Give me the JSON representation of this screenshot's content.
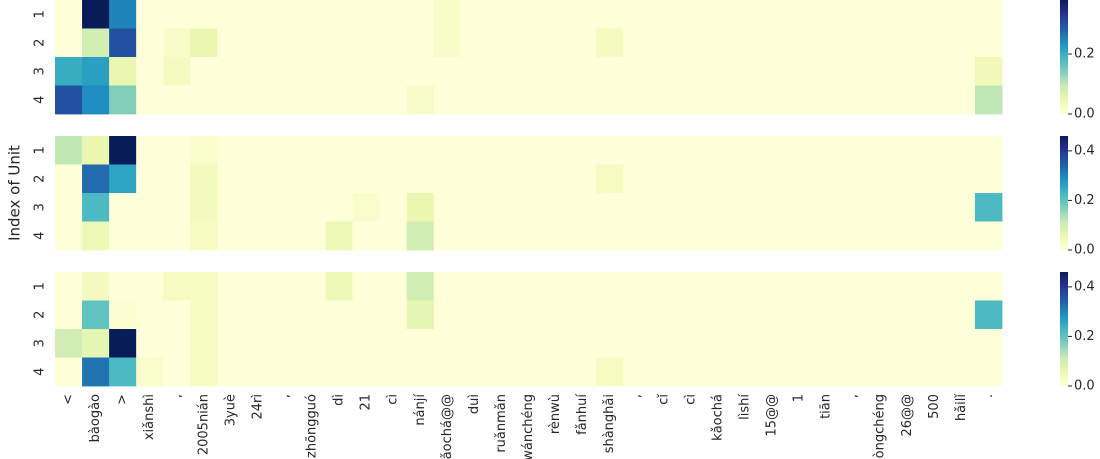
{
  "chart_data": [
    {
      "type": "heatmap",
      "colormap": "YlGnBu",
      "rows": [
        "1",
        "2",
        "3",
        "4"
      ],
      "zlim": [
        0,
        0.38
      ],
      "zticks": [
        {
          "value": 0,
          "label": "0.0"
        },
        0.2
      ],
      "values": [
        [
          0,
          0.38,
          0.25,
          0,
          0,
          0,
          0,
          0,
          0,
          0,
          0,
          0,
          0,
          0,
          0.02,
          0,
          0,
          0,
          0,
          0,
          0,
          0,
          0,
          0,
          0,
          0,
          0,
          0,
          0,
          0,
          0,
          0,
          0,
          0,
          0
        ],
        [
          0,
          0.08,
          0.3,
          0,
          0.02,
          0.05,
          0,
          0,
          0,
          0,
          0,
          0,
          0,
          0,
          0.02,
          0,
          0,
          0,
          0,
          0,
          0.03,
          0,
          0,
          0,
          0,
          0,
          0,
          0,
          0,
          0,
          0,
          0,
          0,
          0,
          0
        ],
        [
          0.2,
          0.22,
          0.05,
          0,
          0.03,
          0,
          0,
          0,
          0,
          0,
          0,
          0,
          0,
          0,
          0,
          0,
          0,
          0,
          0,
          0,
          0,
          0,
          0,
          0,
          0,
          0,
          0,
          0,
          0,
          0,
          0,
          0,
          0,
          0,
          0.04
        ],
        [
          0.3,
          0.24,
          0.14,
          0,
          0,
          0,
          0,
          0,
          0,
          0,
          0,
          0,
          0,
          0.02,
          0,
          0,
          0,
          0,
          0,
          0,
          0,
          0,
          0,
          0,
          0,
          0,
          0,
          0,
          0,
          0,
          0,
          0,
          0,
          0,
          0.1
        ]
      ]
    },
    {
      "type": "heatmap",
      "colormap": "YlGnBu",
      "ylabel": "Index of Unit",
      "rows": [
        "1",
        "2",
        "3",
        "4"
      ],
      "zlim": [
        0,
        0.46
      ],
      "zticks": [
        {
          "value": 0,
          "label": "0.0"
        },
        0.2,
        0.4
      ],
      "values": [
        [
          0.12,
          0.06,
          0.46,
          0,
          0,
          0.02,
          0,
          0,
          0,
          0,
          0,
          0,
          0,
          0,
          0,
          0,
          0,
          0,
          0,
          0,
          0,
          0,
          0,
          0,
          0,
          0,
          0,
          0,
          0,
          0,
          0,
          0,
          0,
          0,
          0
        ],
        [
          0,
          0.33,
          0.26,
          0,
          0,
          0.04,
          0,
          0,
          0,
          0,
          0,
          0,
          0,
          0,
          0,
          0,
          0,
          0,
          0,
          0,
          0.03,
          0,
          0,
          0,
          0,
          0,
          0,
          0,
          0,
          0,
          0,
          0,
          0,
          0,
          0
        ],
        [
          0,
          0.22,
          0,
          0,
          0,
          0.04,
          0,
          0,
          0,
          0,
          0,
          0.02,
          0,
          0.06,
          0,
          0,
          0,
          0,
          0,
          0,
          0,
          0,
          0,
          0,
          0,
          0,
          0,
          0,
          0,
          0,
          0,
          0,
          0,
          0,
          0.22
        ],
        [
          0,
          0.05,
          0,
          0,
          0,
          0.03,
          0,
          0,
          0,
          0,
          0.05,
          0,
          0,
          0.1,
          0,
          0,
          0,
          0,
          0,
          0,
          0,
          0,
          0,
          0,
          0,
          0,
          0,
          0,
          0,
          0,
          0,
          0,
          0,
          0,
          0
        ]
      ]
    },
    {
      "type": "heatmap",
      "colormap": "YlGnBu",
      "rows": [
        "1",
        "2",
        "3",
        "4"
      ],
      "zlim": [
        0,
        0.46
      ],
      "zticks": [
        {
          "value": 0,
          "label": "0.0"
        },
        0.2,
        0.4
      ],
      "categories": [
        "<",
        "bàogào",
        ">",
        "xiǎnshì",
        ",",
        "2005nián",
        "3yuè",
        "24rì",
        ",",
        "zhōngguó",
        "dì",
        "21",
        "cì",
        "nánjí",
        "kǎochá@@",
        "duì",
        "ruǎnmǎn",
        "wánchéng",
        "rènwù",
        "fǎnhuí",
        "shànghǎi",
        ",",
        "cǐ",
        "cì",
        "kǎochá",
        "lìshí",
        "15@@",
        "1",
        "tiān",
        ",",
        "gòngchéng",
        "26@@",
        "500",
        "hǎilǐ",
        "."
      ],
      "values": [
        [
          0,
          0.04,
          0,
          0,
          0.03,
          0.03,
          0,
          0,
          0,
          0,
          0.05,
          0,
          0,
          0.1,
          0,
          0,
          0,
          0,
          0,
          0,
          0,
          0,
          0,
          0,
          0,
          0,
          0,
          0,
          0,
          0,
          0,
          0,
          0,
          0,
          0
        ],
        [
          0,
          0.2,
          0.01,
          0,
          0,
          0.03,
          0,
          0,
          0,
          0,
          0,
          0,
          0,
          0.07,
          0,
          0,
          0,
          0,
          0,
          0,
          0,
          0,
          0,
          0,
          0,
          0,
          0,
          0,
          0,
          0,
          0,
          0,
          0,
          0,
          0.22
        ],
        [
          0.1,
          0.07,
          0.46,
          0,
          0,
          0.03,
          0,
          0,
          0,
          0,
          0,
          0,
          0,
          0,
          0,
          0,
          0,
          0,
          0,
          0,
          0,
          0,
          0,
          0,
          0,
          0,
          0,
          0,
          0,
          0,
          0,
          0,
          0,
          0,
          0
        ],
        [
          0,
          0.32,
          0.22,
          0.02,
          0,
          0.03,
          0,
          0,
          0,
          0,
          0,
          0,
          0,
          0,
          0,
          0,
          0,
          0,
          0,
          0,
          0.03,
          0,
          0,
          0,
          0,
          0,
          0,
          0,
          0,
          0,
          0,
          0,
          0,
          0,
          0
        ]
      ]
    }
  ]
}
